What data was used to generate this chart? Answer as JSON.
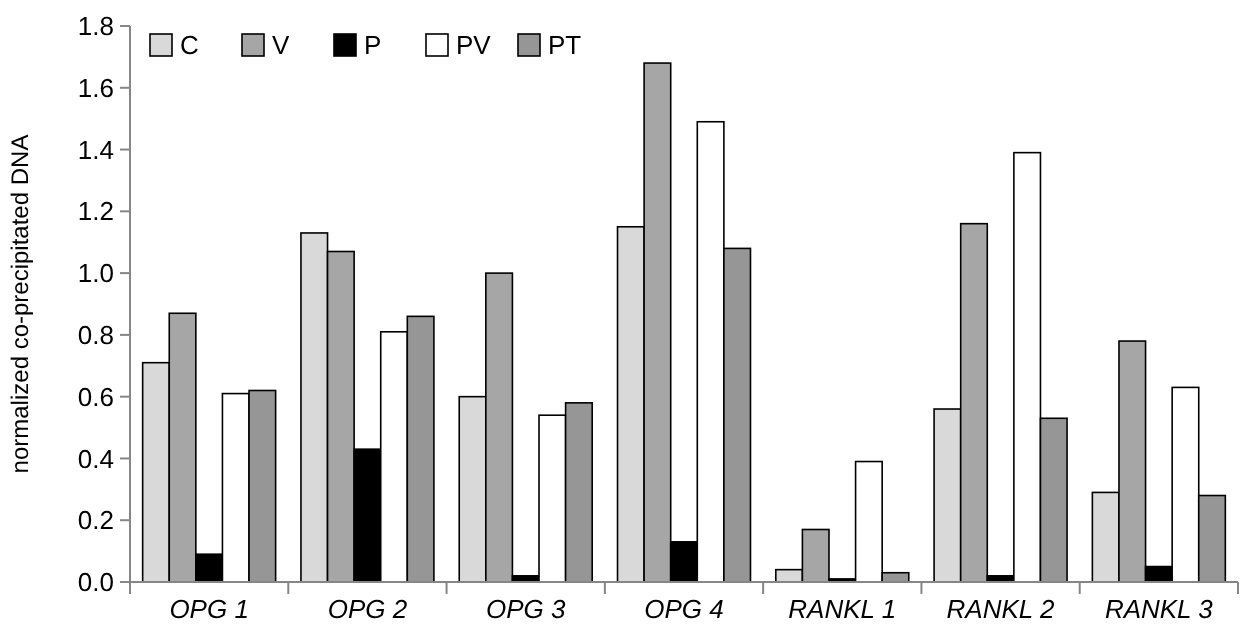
{
  "chart_data": {
    "type": "bar",
    "ylabel": "normalized co-precipitated DNA",
    "categories": [
      "OPG 1",
      "OPG 2",
      "OPG 3",
      "OPG 4",
      "RANKL 1",
      "RANKL 2",
      "RANKL 3"
    ],
    "series": [
      {
        "name": "C",
        "color": "#d9d9d9",
        "values": [
          0.71,
          1.13,
          0.6,
          1.15,
          0.04,
          0.56,
          0.29
        ]
      },
      {
        "name": "V",
        "color": "#a6a6a6",
        "values": [
          0.87,
          1.07,
          1.0,
          1.68,
          0.17,
          1.16,
          0.78
        ]
      },
      {
        "name": "P",
        "color": "#000000",
        "values": [
          0.09,
          0.43,
          0.02,
          0.13,
          0.01,
          0.02,
          0.05
        ]
      },
      {
        "name": "PV",
        "color": "#ffffff",
        "values": [
          0.61,
          0.81,
          0.54,
          1.49,
          0.39,
          1.39,
          0.63
        ]
      },
      {
        "name": "PT",
        "color": "#969696",
        "values": [
          0.62,
          0.86,
          0.58,
          1.08,
          0.03,
          0.53,
          0.28
        ]
      }
    ],
    "ylim": [
      0,
      1.8
    ],
    "yticks": [
      {
        "value": 0,
        "label": "0.0"
      },
      {
        "value": 0.2,
        "label": "0.2"
      },
      {
        "value": 0.4,
        "label": "0.4"
      },
      {
        "value": 0.6,
        "label": "0.6"
      },
      {
        "value": 0.8,
        "label": "0.8"
      },
      {
        "value": 1,
        "label": "1.0"
      },
      {
        "value": 1.2,
        "label": "1.2"
      },
      {
        "value": 1.4,
        "label": "1.4"
      },
      {
        "value": 1.6,
        "label": "1.6"
      },
      {
        "value": 1.8,
        "label": "1.8"
      }
    ],
    "grid": false,
    "legend": "top left"
  }
}
